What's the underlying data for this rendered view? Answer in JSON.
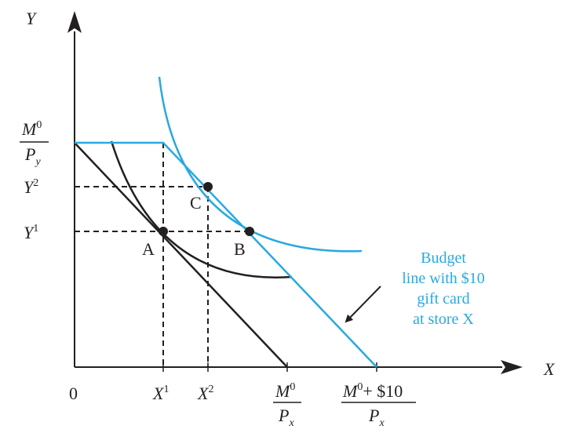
{
  "colors": {
    "black": "#231f20",
    "cyan": "#29a9e0"
  },
  "axes": {
    "y_label": "Y",
    "x_label": "X"
  },
  "ticks": {
    "origin": "0",
    "x1_base": "X",
    "x1_sup": "1",
    "x2_base": "X",
    "x2_sup": "2",
    "y1_base": "Y",
    "y1_sup": "1",
    "y2_base": "Y",
    "y2_sup": "2",
    "m0px_num_base": "M",
    "m0px_num_sup": "0",
    "m0px_den_base": "P",
    "m0px_den_sub": "x",
    "m0py_num_base": "M",
    "m0py_num_sup": "0",
    "m0py_den_base": "P",
    "m0py_den_sub": "y",
    "gift_num_base": "M",
    "gift_num_sup": "0",
    "gift_num_rest": "+ $10",
    "gift_den_base": "P",
    "gift_den_sub": "x"
  },
  "points": {
    "a": "A",
    "b": "B",
    "c": "C"
  },
  "annotation": {
    "line1": "Budget",
    "line2": "line with $10",
    "line3": "gift card",
    "line4": "at store X"
  }
}
